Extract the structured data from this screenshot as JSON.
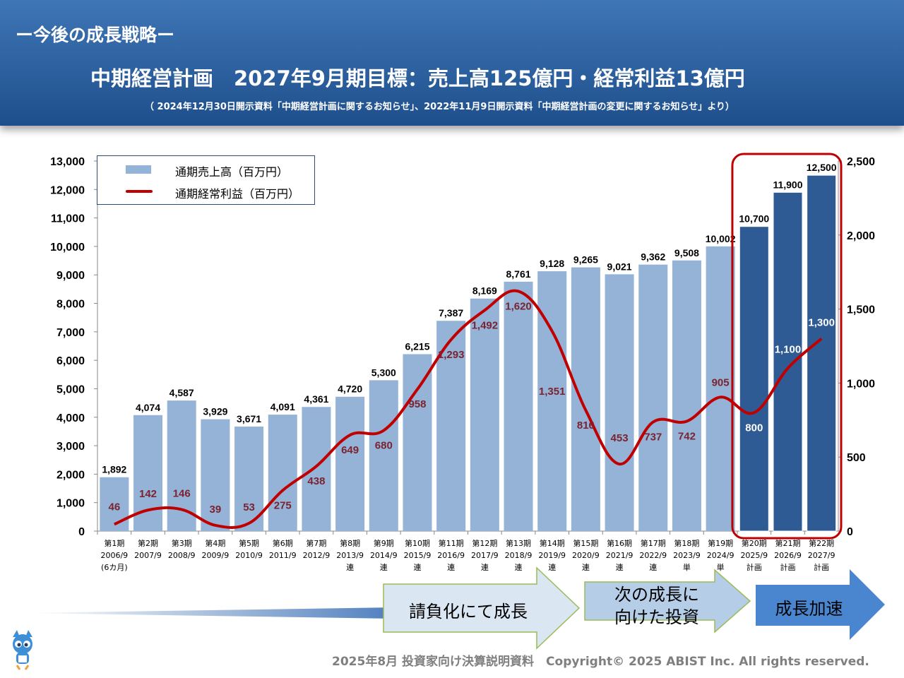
{
  "header": {
    "section_title": "ー今後の成長戦略ー",
    "main_title": "中期経営計画　2027年9月期目標：売上高125億円・経常利益13億円",
    "source_note": "（ 2024年12月30日開示資料「中期経営計画に関するお知らせ」、2022年11月9日開示資料「中期経営計画の変更に関するお知らせ」より）"
  },
  "chart_data": {
    "type": "bar",
    "categories": [
      [
        "第1期",
        "2006/9",
        "(6カ月)"
      ],
      [
        "第2期",
        "2007/9",
        ""
      ],
      [
        "第3期",
        "2008/9",
        ""
      ],
      [
        "第4期",
        "2009/9",
        ""
      ],
      [
        "第5期",
        "2010/9",
        ""
      ],
      [
        "第6期",
        "2011/9",
        ""
      ],
      [
        "第7期",
        "2012/9",
        ""
      ],
      [
        "第8期",
        "2013/9",
        "連"
      ],
      [
        "第9期",
        "2014/9",
        "連"
      ],
      [
        "第10期",
        "2015/9",
        "連"
      ],
      [
        "第11期",
        "2016/9",
        "連"
      ],
      [
        "第12期",
        "2017/9",
        "連"
      ],
      [
        "第13期",
        "2018/9",
        "連"
      ],
      [
        "第14期",
        "2019/9",
        "連"
      ],
      [
        "第15期",
        "2020/9",
        "連"
      ],
      [
        "第16期",
        "2021/9",
        "連"
      ],
      [
        "第17期",
        "2022/9",
        "連"
      ],
      [
        "第18期",
        "2023/9",
        "単"
      ],
      [
        "第19期",
        "2024/9",
        "単"
      ],
      [
        "第20期",
        "2025/9",
        "計画"
      ],
      [
        "第21期",
        "2026/9",
        "計画"
      ],
      [
        "第22期",
        "2027/9",
        "計画"
      ]
    ],
    "series": [
      {
        "name": "通期売上高（百万円）",
        "kind": "bar",
        "axis": "left",
        "values": [
          1892,
          4074,
          4587,
          3929,
          3671,
          4091,
          4361,
          4720,
          5300,
          6215,
          7387,
          8169,
          8761,
          9128,
          9265,
          9021,
          9362,
          9508,
          10002,
          10700,
          11900,
          12500
        ],
        "labels": [
          "1,892",
          "4,074",
          "4,587",
          "3,929",
          "3,671",
          "4,091",
          "4,361",
          "4,720",
          "5,300",
          "6,215",
          "7,387",
          "8,169",
          "8,761",
          "9,128",
          "9,265",
          "9,021",
          "9,362",
          "9,508",
          "10,002",
          "10,700",
          "11,900",
          "12,500"
        ]
      },
      {
        "name": "通期経常利益（百万円）",
        "kind": "line",
        "axis": "right",
        "values": [
          46,
          142,
          146,
          39,
          53,
          275,
          438,
          649,
          680,
          958,
          1293,
          1492,
          1620,
          1351,
          816,
          453,
          737,
          742,
          905,
          800,
          1100,
          1300
        ],
        "labels": [
          "46",
          "142",
          "146",
          "39",
          "53",
          "275",
          "438",
          "649",
          "680",
          "958",
          "1,293",
          "1,492",
          "1,620",
          "1,351",
          "816",
          "453",
          "737",
          "742",
          "905",
          "800",
          "1,100",
          "1,300"
        ]
      }
    ],
    "left_axis": {
      "ylim": [
        0,
        13000
      ],
      "ticks": [
        "0",
        "1,000",
        "2,000",
        "3,000",
        "4,000",
        "5,000",
        "6,000",
        "7,000",
        "8,000",
        "9,000",
        "10,000",
        "11,000",
        "12,000",
        "13,000"
      ]
    },
    "right_axis": {
      "ylim": [
        0,
        2500
      ],
      "ticks": [
        "0",
        "500",
        "1,000",
        "1,500",
        "2,000",
        "2,500"
      ]
    },
    "plan_highlight_from_index": 19,
    "colors": {
      "bar": "#94b3d7",
      "bar_plan": "#2e5b93",
      "line": "#c00000",
      "line_label": "#7b2330",
      "highlight_box": "#c00000"
    },
    "legend_position": "top-left"
  },
  "arrows": [
    {
      "label": "請負化にて成長"
    },
    {
      "label": "次の成長に\n向けた投資"
    },
    {
      "label": "成長加速"
    }
  ],
  "footer": "2025年8月 投資家向け決算説明資料　Copyright© 2025 ABIST Inc. All rights reserved."
}
